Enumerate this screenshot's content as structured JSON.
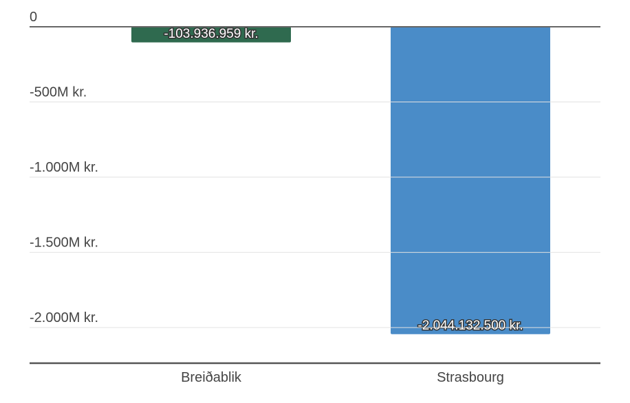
{
  "chart_data": {
    "type": "bar",
    "categories": [
      "Breiðablik",
      "Strasbourg"
    ],
    "values": [
      -103936959,
      -2044132500
    ],
    "value_labels": [
      "-103.936.959 kr.",
      "-2.044.132.500 kr."
    ],
    "colors": [
      "#2f6a4f",
      "#4a8cc8"
    ],
    "ylim": [
      -2237000000,
      0
    ],
    "yticks": [
      0,
      {
        "value": -500000000,
        "label": "-500M kr."
      },
      {
        "value": -1000000000,
        "label": "-1.000M kr."
      },
      {
        "value": -1500000000,
        "label": "-1.500M kr."
      },
      {
        "value": -2000000000,
        "label": "-2.000M kr."
      }
    ],
    "grid": true
  }
}
